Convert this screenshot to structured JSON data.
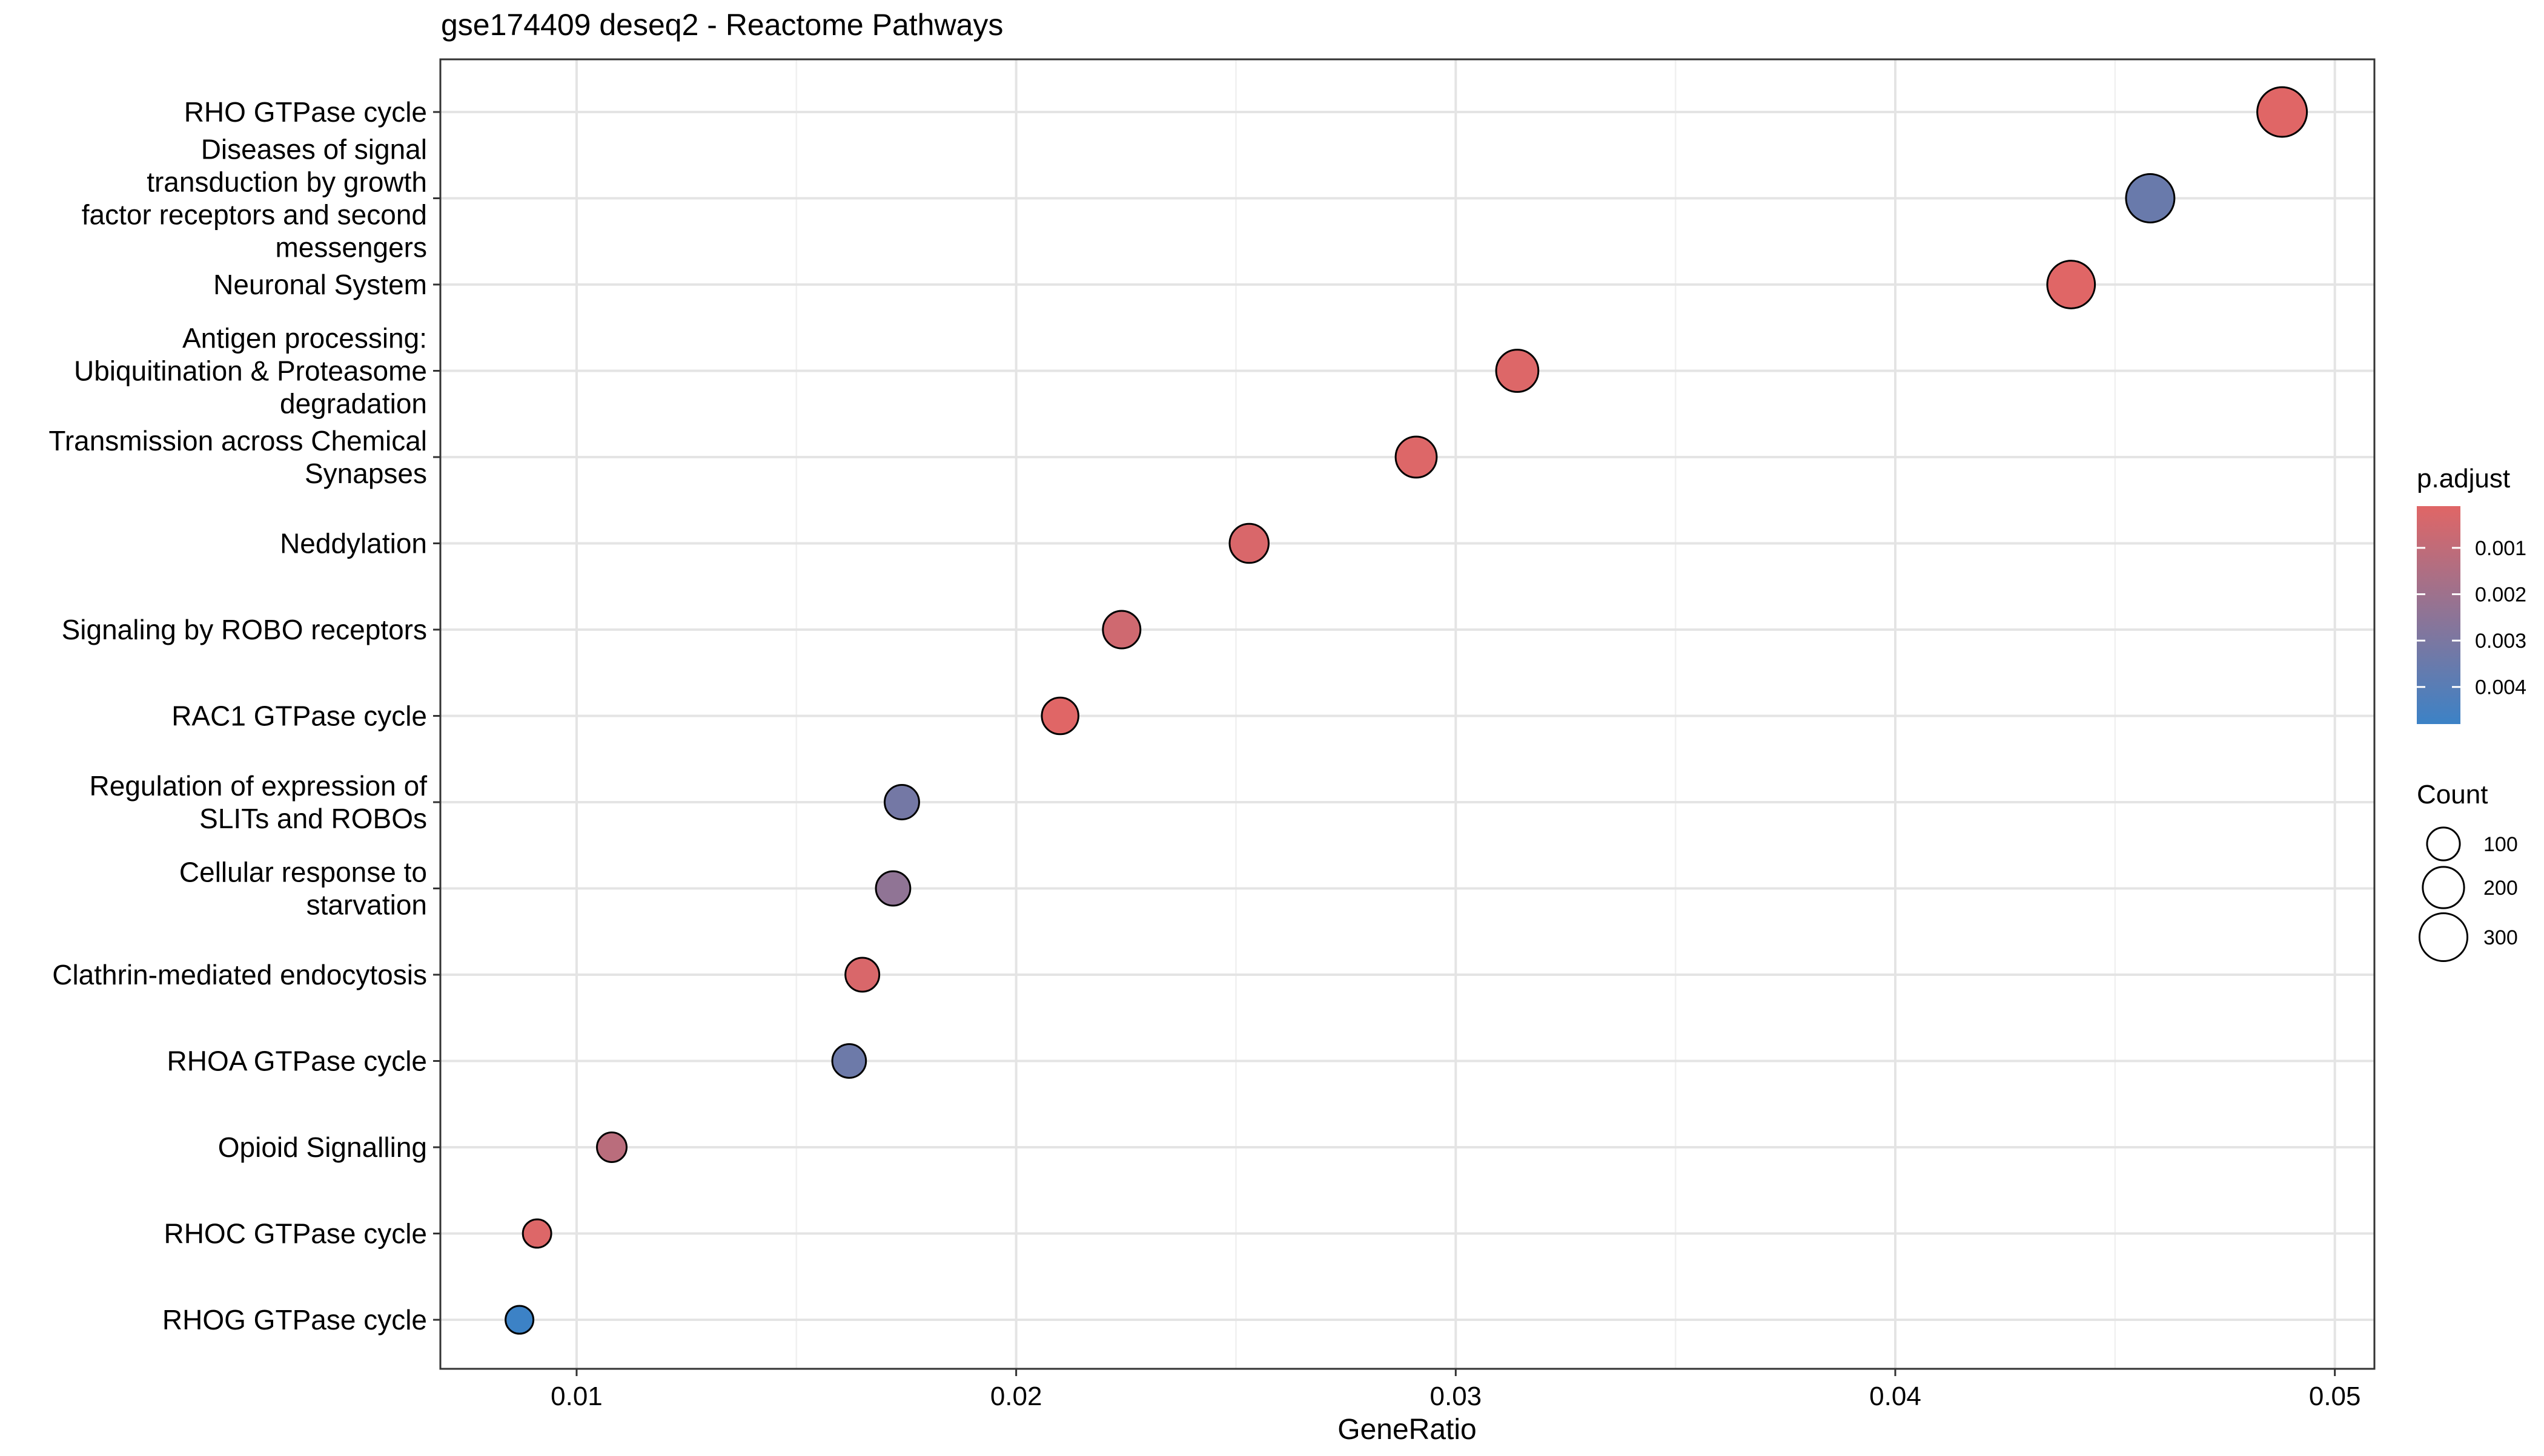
{
  "chart_data": {
    "type": "scatter",
    "title": "gse174409 deseq2 - Reactome Pathways",
    "xlabel": "GeneRatio",
    "ylabel": "",
    "xlim": [
      0.0069,
      0.0509
    ],
    "x_ticks": [
      0.01,
      0.02,
      0.03,
      0.04,
      0.05
    ],
    "x_tick_labels": [
      "0.01",
      "0.02",
      "0.03",
      "0.04",
      "0.05"
    ],
    "grid": true,
    "legend_position": "right",
    "points": [
      {
        "label": [
          "RHO GTPase cycle"
        ],
        "gene_ratio": 0.0488,
        "count": 330,
        "p_adjust": 0.0001
      },
      {
        "label": [
          "Diseases of signal",
          "transduction by growth",
          "factor receptors and second",
          "messengers"
        ],
        "gene_ratio": 0.0458,
        "count": 308,
        "p_adjust": 0.0035
      },
      {
        "label": [
          "Neuronal System"
        ],
        "gene_ratio": 0.044,
        "count": 296,
        "p_adjust": 0.0001
      },
      {
        "label": [
          "Antigen processing:",
          "Ubiquitination & Proteasome",
          "degradation"
        ],
        "gene_ratio": 0.0314,
        "count": 212,
        "p_adjust": 0.0002
      },
      {
        "label": [
          "Transmission across Chemical",
          "Synapses"
        ],
        "gene_ratio": 0.0291,
        "count": 196,
        "p_adjust": 0.0002
      },
      {
        "label": [
          "Neddylation"
        ],
        "gene_ratio": 0.0253,
        "count": 170,
        "p_adjust": 0.0003
      },
      {
        "label": [
          "Signaling by ROBO receptors"
        ],
        "gene_ratio": 0.0224,
        "count": 151,
        "p_adjust": 0.0006
      },
      {
        "label": [
          "RAC1 GTPase cycle"
        ],
        "gene_ratio": 0.021,
        "count": 141,
        "p_adjust": 0.0001
      },
      {
        "label": [
          "Regulation of expression of",
          "SLITs and ROBOs"
        ],
        "gene_ratio": 0.0174,
        "count": 117,
        "p_adjust": 0.0032
      },
      {
        "label": [
          "Cellular response to",
          "starvation"
        ],
        "gene_ratio": 0.0172,
        "count": 116,
        "p_adjust": 0.0024
      },
      {
        "label": [
          "Clathrin-mediated endocytosis"
        ],
        "gene_ratio": 0.0165,
        "count": 111,
        "p_adjust": 0.0003
      },
      {
        "label": [
          "RHOA GTPase cycle"
        ],
        "gene_ratio": 0.0162,
        "count": 109,
        "p_adjust": 0.0034
      },
      {
        "label": [
          "Opioid Signalling"
        ],
        "gene_ratio": 0.0108,
        "count": 72,
        "p_adjust": 0.0012
      },
      {
        "label": [
          "RHOC GTPase cycle"
        ],
        "gene_ratio": 0.0091,
        "count": 62,
        "p_adjust": 0.0002
      },
      {
        "label": [
          "RHOG GTPase cycle"
        ],
        "gene_ratio": 0.0087,
        "count": 58,
        "p_adjust": 0.0048
      }
    ],
    "color_legend": {
      "title": "p.adjust",
      "range": [
        0.0001,
        0.0048
      ],
      "ticks": [
        0.001,
        0.002,
        0.003,
        0.004
      ],
      "tick_labels": [
        "0.001",
        "0.002",
        "0.003",
        "0.004"
      ],
      "low_color": "#E06666",
      "high_color": "#3C82C6"
    },
    "size_legend": {
      "title": "Count",
      "values": [
        100,
        200,
        300
      ],
      "labels": [
        "100",
        "200",
        "300"
      ]
    }
  }
}
